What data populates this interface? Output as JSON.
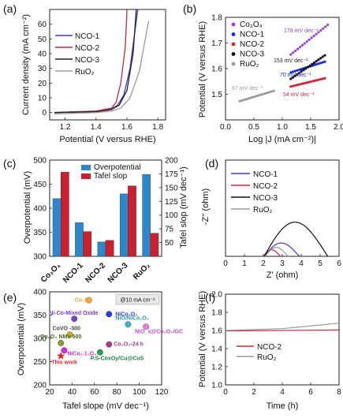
{
  "panels": {
    "a": "(a)",
    "b": "(b)",
    "c": "(c)",
    "d": "(d)",
    "e": "(e)",
    "f": "(f)"
  },
  "chart_data": [
    {
      "id": "a",
      "type": "line",
      "xlabel": "Potential (V versus RHE)",
      "ylabel": "Current density (mA cm⁻²)",
      "xlim": [
        1.1,
        1.85
      ],
      "ylim": [
        -5,
        70
      ],
      "xticks": [
        "1.2",
        "1.4",
        "1.6",
        "1.8"
      ],
      "yticks": [
        "0",
        "10",
        "20",
        "30",
        "40",
        "50",
        "60"
      ],
      "legend": [
        "NCO-1",
        "NCO-2",
        "NCO-3",
        "RuO₂"
      ],
      "colors": [
        "#3a3ad6",
        "#d0233a",
        "#222222",
        "#9a9a9a"
      ],
      "series": [
        {
          "name": "NCO-1",
          "points": [
            [
              1.13,
              0
            ],
            [
              1.4,
              0.8
            ],
            [
              1.5,
              2.5
            ],
            [
              1.54,
              5
            ],
            [
              1.58,
              12
            ],
            [
              1.62,
              30
            ],
            [
              1.66,
              62
            ],
            [
              1.67,
              70
            ]
          ]
        },
        {
          "name": "NCO-2",
          "points": [
            [
              1.13,
              0
            ],
            [
              1.4,
              1
            ],
            [
              1.5,
              3
            ],
            [
              1.53,
              7
            ],
            [
              1.56,
              20
            ],
            [
              1.59,
              45
            ],
            [
              1.6,
              70
            ]
          ]
        },
        {
          "name": "NCO-3",
          "points": [
            [
              1.13,
              0
            ],
            [
              1.4,
              0.5
            ],
            [
              1.5,
              2
            ],
            [
              1.55,
              5
            ],
            [
              1.6,
              15
            ],
            [
              1.64,
              40
            ],
            [
              1.66,
              70
            ]
          ]
        },
        {
          "name": "RuO₂",
          "points": [
            [
              1.13,
              -1
            ],
            [
              1.4,
              0
            ],
            [
              1.5,
              1
            ],
            [
              1.56,
              3
            ],
            [
              1.62,
              10
            ],
            [
              1.68,
              28
            ],
            [
              1.74,
              62
            ]
          ]
        }
      ]
    },
    {
      "id": "b",
      "type": "scatter",
      "xlabel": "Log |J (mA cm⁻²)|",
      "ylabel": "Potential (V versus RHE)",
      "xlim": [
        0,
        2.0
      ],
      "ylim": [
        1.4,
        1.8
      ],
      "xticks": [
        "0.0",
        "0.5",
        "1.0",
        "1.5",
        "2.0"
      ],
      "yticks": [
        "1.5",
        "1.6",
        "1.7",
        "1.8"
      ],
      "legend": [
        "Co₃O₄",
        "NCO-1",
        "NCO-2",
        "NCO-3",
        "RuO₂"
      ],
      "colors": [
        "#9b3fd6",
        "#1a2bd8",
        "#d0233a",
        "#111111",
        "#9a9a9a"
      ],
      "annotations": [
        "178 mV dec⁻¹",
        "153 mV dec⁻¹",
        "70 mV dec⁻¹",
        "54 mV dec⁻¹",
        "67 mV dec⁻¹"
      ],
      "series": [
        {
          "name": "Co₃O₄",
          "x0": 1.15,
          "x1": 1.8,
          "y0": 1.655,
          "slope": 0.178
        },
        {
          "name": "NCO-1",
          "x0": 1.15,
          "x1": 1.75,
          "y0": 1.585,
          "slope": 0.07
        },
        {
          "name": "NCO-2",
          "x0": 1.15,
          "x1": 1.75,
          "y0": 1.53,
          "slope": 0.054
        },
        {
          "name": "NCO-3",
          "x0": 1.15,
          "x1": 1.75,
          "y0": 1.56,
          "slope": 0.153
        },
        {
          "name": "RuO₂",
          "x0": 0.25,
          "x1": 0.85,
          "y0": 1.473,
          "slope": 0.067
        }
      ]
    },
    {
      "id": "c",
      "type": "bar",
      "categories": [
        "Co₃O₄",
        "NCO-1",
        "NCO-2",
        "NCO-3",
        "RuO₂"
      ],
      "ylabel": "Overpotential (mV)",
      "y2label": "Tafel slop (mV dec⁻¹)",
      "ylim": [
        300,
        500
      ],
      "y2lim": [
        25,
        200
      ],
      "yticks": [
        "300",
        "350",
        "400",
        "450",
        "500"
      ],
      "y2ticks": [
        "50",
        "75",
        "100",
        "125",
        "150",
        "175",
        "200"
      ],
      "legend": [
        "Overpotential",
        "Tafel slop"
      ],
      "colors": [
        "#2f86c9",
        "#c8222f"
      ],
      "series": [
        {
          "name": "Overpotential",
          "values": [
            420,
            370,
            330,
            430,
            470
          ]
        },
        {
          "name": "Tafel slop",
          "values": [
            178,
            70,
            54,
            153,
            67
          ]
        }
      ]
    },
    {
      "id": "d",
      "type": "line",
      "xlabel": "Z' (ohm)",
      "ylabel": "-Z'' (ohm)",
      "xlim": [
        0,
        6
      ],
      "ylim": [
        0,
        3
      ],
      "xticks": [
        "0",
        "1",
        "2",
        "3",
        "4",
        "5",
        "6"
      ],
      "yticks": [],
      "legend": [
        "NCO-1",
        "NCO-2",
        "NCO-3",
        "RuO₂"
      ],
      "colors": [
        "#3a3ad6",
        "#d0233a",
        "#111111",
        "#9a9a9a"
      ],
      "series": [
        {
          "name": "NCO-1",
          "x0": 2.05,
          "x1": 3.9,
          "peak": 0.45
        },
        {
          "name": "NCO-2",
          "x0": 2.0,
          "x1": 2.9,
          "peak": 0.22
        },
        {
          "name": "NCO-3",
          "x0": 2.05,
          "x1": 5.4,
          "peak": 1.15
        },
        {
          "name": "RuO₂",
          "x0": 2.1,
          "x1": 3.3,
          "peak": 0.3
        }
      ]
    },
    {
      "id": "e",
      "type": "scatter",
      "xlabel": "Tafel slope (mV dec⁻¹)",
      "ylabel": "Overpotential (mV)",
      "xlim": [
        20,
        120
      ],
      "ylim": [
        200,
        400
      ],
      "xticks": [
        "20",
        "40",
        "60",
        "80",
        "100",
        "120"
      ],
      "yticks": [
        "200",
        "250",
        "300",
        "350",
        "400"
      ],
      "note": "@10 mA cm⁻²",
      "points": [
        {
          "label": "Co₃O₄",
          "x": 55,
          "y": 382,
          "color": "#f5a236"
        },
        {
          "label": "Ni-Co-Mixed Oxide",
          "x": 42,
          "y": 342,
          "color": "#7a3fc4"
        },
        {
          "label": "NiCo₂O₄",
          "x": 73,
          "y": 352,
          "color": "#2b3fd6"
        },
        {
          "label": "CoVO -300",
          "x": 38,
          "y": 308,
          "color": "#c9a52a"
        },
        {
          "label": "NiO/NiCo₂O₄",
          "x": 90,
          "y": 330,
          "color": "#36b3c9"
        },
        {
          "label": "NiO_x@Co₃O₄/GC",
          "x": 106,
          "y": 325,
          "color": "#e280d8"
        },
        {
          "label": "Co₃O₄ NMs-500",
          "x": 30,
          "y": 290,
          "color": "#8a9a3a"
        },
        {
          "label": "Co₃O₄-24 h",
          "x": 73,
          "y": 287,
          "color": "#a33d87"
        },
        {
          "label": "NiCo₂.1₁O₄",
          "x": 33,
          "y": 274,
          "color": "#d02bd6"
        },
        {
          "label": "P.S-CoxOy/Cu@CuS",
          "x": 65,
          "y": 270,
          "color": "#2a9a5a"
        },
        {
          "label": "This work",
          "x": 30,
          "y": 262,
          "color": "#e0262f",
          "star": true
        }
      ]
    },
    {
      "id": "f",
      "type": "line",
      "xlabel": "Time (h)",
      "ylabel": "Potential (V versus RHE)",
      "xlim": [
        0,
        8
      ],
      "ylim": [
        1.0,
        2.0
      ],
      "xticks": [
        "0",
        "2",
        "4",
        "6",
        "8"
      ],
      "yticks": [
        "1.0",
        "1.2",
        "1.4",
        "1.6",
        "1.8",
        "2.0"
      ],
      "legend": [
        "NCO-2",
        "RuO₂"
      ],
      "colors": [
        "#d0233a",
        "#9a9a9a"
      ],
      "series": [
        {
          "name": "NCO-2",
          "points": [
            [
              0,
              1.595
            ],
            [
              8,
              1.605
            ]
          ]
        },
        {
          "name": "RuO₂",
          "points": [
            [
              0,
              1.6
            ],
            [
              4,
              1.62
            ],
            [
              8,
              1.68
            ]
          ]
        }
      ]
    }
  ]
}
